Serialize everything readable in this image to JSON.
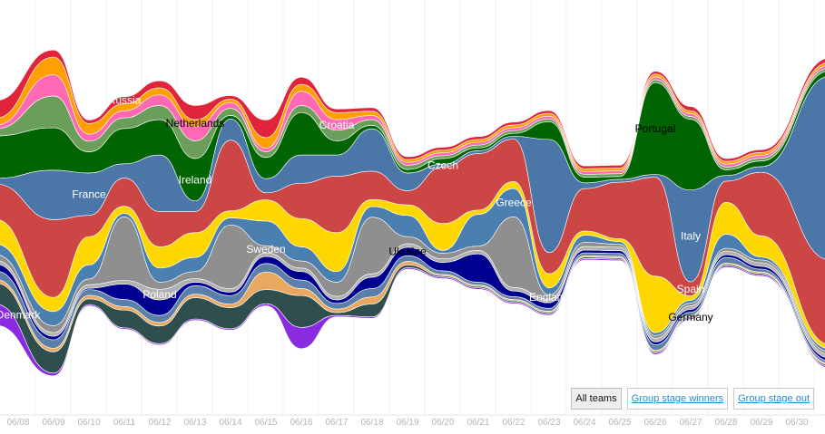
{
  "filters": [
    {
      "label": "All teams",
      "active": true
    },
    {
      "label": "Group stage winners",
      "active": false
    },
    {
      "label": "Group stage out",
      "active": false
    }
  ],
  "chart_data": {
    "type": "area",
    "x": [
      "06/08",
      "06/09",
      "06/10",
      "06/11",
      "06/12",
      "06/13",
      "06/14",
      "06/15",
      "06/16",
      "06/17",
      "06/18",
      "06/19",
      "06/20",
      "06/21",
      "06/22",
      "06/23",
      "06/24",
      "06/25",
      "06/26",
      "06/27",
      "06/28",
      "06/29",
      "06/30"
    ],
    "series": [
      {
        "name": "Denmark",
        "color": "#8a2be2",
        "values": [
          30,
          4,
          2,
          2,
          2,
          2,
          2,
          3,
          30,
          2,
          2,
          2,
          2,
          2,
          2,
          2,
          2,
          2,
          2,
          2,
          2,
          2,
          2
        ]
      },
      {
        "name": "",
        "color": "#2f4f4f",
        "values": [
          30,
          30,
          8,
          25,
          25,
          30,
          30,
          20,
          45,
          4,
          18,
          4,
          2,
          2,
          2,
          2,
          2,
          2,
          2,
          2,
          2,
          2,
          2
        ]
      },
      {
        "name": "",
        "color": "#e8a860",
        "values": [
          5,
          5,
          5,
          5,
          5,
          5,
          5,
          25,
          10,
          5,
          10,
          5,
          2,
          2,
          2,
          2,
          2,
          2,
          2,
          2,
          2,
          2,
          2
        ]
      },
      {
        "name": "",
        "color": "#5a7fa8",
        "values": [
          12,
          12,
          8,
          10,
          10,
          12,
          12,
          12,
          12,
          8,
          12,
          8,
          5,
          4,
          4,
          4,
          4,
          4,
          8,
          4,
          8,
          4,
          4
        ]
      },
      {
        "name": "Ukraine",
        "color": "#000090",
        "values": [
          10,
          5,
          2,
          22,
          22,
          5,
          5,
          10,
          12,
          5,
          16,
          12,
          12,
          40,
          8,
          8,
          4,
          4,
          4,
          4,
          4,
          4,
          4
        ]
      },
      {
        "name": "Poland",
        "color": "#b0b0b0",
        "values": [
          5,
          5,
          5,
          5,
          15,
          5,
          5,
          5,
          5,
          5,
          5,
          5,
          5,
          5,
          5,
          5,
          5,
          5,
          5,
          5,
          5,
          5,
          5
        ]
      },
      {
        "name": "Sweden",
        "color": "#8f8f8f",
        "values": [
          8,
          10,
          8,
          90,
          10,
          10,
          90,
          10,
          10,
          20,
          80,
          10,
          8,
          6,
          100,
          6,
          6,
          4,
          4,
          4,
          4,
          4,
          4
        ]
      },
      {
        "name": "Greece",
        "color": "#4a7fb0",
        "values": [
          15,
          20,
          20,
          5,
          20,
          20,
          10,
          35,
          20,
          15,
          15,
          30,
          4,
          45,
          40,
          10,
          10,
          4,
          4,
          4,
          20,
          4,
          4
        ]
      },
      {
        "name": "",
        "color": "#ffd700",
        "values": [
          35,
          20,
          40,
          10,
          30,
          35,
          10,
          30,
          40,
          55,
          10,
          15,
          38,
          6,
          10,
          20,
          6,
          4,
          80,
          6,
          45,
          30,
          6
        ]
      },
      {
        "name": "Spain",
        "color": "#cd4646",
        "values": [
          50,
          110,
          30,
          40,
          50,
          30,
          100,
          10,
          50,
          80,
          40,
          20,
          80,
          80,
          60,
          30,
          60,
          80,
          140,
          20,
          30,
          90,
          120
        ]
      },
      {
        "name": "France",
        "color": "#4a76a8",
        "values": [
          8,
          70,
          60,
          20,
          80,
          15,
          30,
          20,
          40,
          30,
          60,
          25,
          4,
          4,
          4,
          160,
          8,
          4,
          4,
          130,
          8,
          8,
          260
        ]
      },
      {
        "name": "Ireland",
        "color": "#006400",
        "values": [
          60,
          60,
          30,
          50,
          50,
          60,
          5,
          30,
          60,
          20,
          5,
          5,
          8,
          4,
          4,
          25,
          8,
          4,
          130,
          100,
          8,
          8,
          8
        ]
      },
      {
        "name": "",
        "color": "#6b9e5a",
        "values": [
          10,
          45,
          15,
          15,
          20,
          25,
          10,
          8,
          10,
          15,
          8,
          6,
          4,
          4,
          4,
          4,
          4,
          4,
          4,
          4,
          4,
          4,
          4
        ]
      },
      {
        "name": "Croatia",
        "color": "#ff69b4",
        "values": [
          5,
          30,
          10,
          10,
          15,
          20,
          8,
          5,
          20,
          15,
          6,
          4,
          4,
          4,
          4,
          4,
          4,
          4,
          4,
          4,
          4,
          4,
          4
        ]
      },
      {
        "name": "Netherlands",
        "color": "#ff9f00",
        "values": [
          10,
          25,
          15,
          10,
          10,
          10,
          5,
          15,
          10,
          10,
          6,
          4,
          4,
          4,
          4,
          4,
          4,
          4,
          4,
          4,
          4,
          4,
          4
        ]
      },
      {
        "name": "Russia",
        "color": "#e0243c",
        "values": [
          25,
          10,
          5,
          10,
          10,
          20,
          5,
          25,
          10,
          5,
          5,
          4,
          4,
          4,
          4,
          4,
          4,
          4,
          4,
          6,
          4,
          4,
          6
        ]
      }
    ],
    "labels": [
      {
        "text": "Denmark",
        "color": "#ffffff",
        "x": "06/08",
        "at": "Denmark"
      },
      {
        "text": "Poland",
        "color": "#ffffff",
        "x": "06/12",
        "at": "Poland"
      },
      {
        "text": "Sweden",
        "color": "#ffffff",
        "x": "06/15",
        "at": "Sweden"
      },
      {
        "text": "Ukraine",
        "color": "#000000",
        "x": "06/19",
        "at": "Ukraine"
      },
      {
        "text": "Greece",
        "color": "#ffffff",
        "x": "06/22",
        "at": "Greece"
      },
      {
        "text": "England",
        "color": "#ffffff",
        "x": "06/23",
        "at": "Sweden"
      },
      {
        "text": "Spain",
        "color": "#ffffff",
        "x": "06/27",
        "at": "Spain"
      },
      {
        "text": "Germany",
        "color": "#000000",
        "x": "06/27",
        "at": ""
      },
      {
        "text": "France",
        "color": "#ffffff",
        "x": "06/10",
        "at": "France"
      },
      {
        "text": "Russia",
        "color": "#ffffff",
        "x": "06/11",
        "at": "Russia"
      },
      {
        "text": "Ireland",
        "color": "#ffffff",
        "x": "06/13",
        "at": "Ireland"
      },
      {
        "text": "Netherlands",
        "color": "#000000",
        "x": "06/13",
        "at": "Netherlands"
      },
      {
        "text": "Croatia",
        "color": "#ffffff",
        "x": "06/17",
        "at": "Croatia"
      },
      {
        "text": "Czech",
        "color": "#ffffff",
        "x": "06/20",
        "at": "France"
      },
      {
        "text": "Portugal",
        "color": "#000000",
        "x": "06/26",
        "at": "Ireland"
      },
      {
        "text": "Italy",
        "color": "#ffffff",
        "x": "06/27",
        "at": "France"
      }
    ]
  }
}
